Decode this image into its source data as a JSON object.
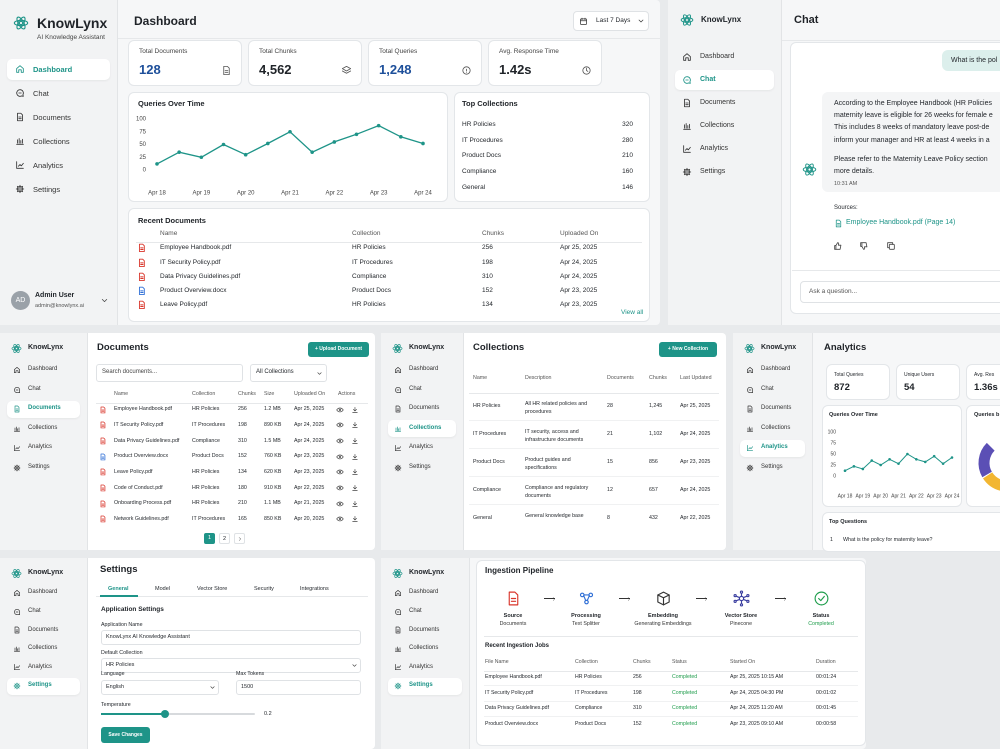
{
  "chart_data": [
    {
      "type": "line",
      "title": "Queries Over Time",
      "categories": [
        "Apr 18",
        null,
        "Apr 19",
        null,
        "Apr 20",
        null,
        "Apr 21",
        null,
        "Apr 22",
        null,
        "Apr 23",
        null,
        "Apr 24"
      ],
      "values": [
        12,
        35,
        25,
        50,
        30,
        52,
        75,
        35,
        55,
        70,
        87,
        65,
        52
      ],
      "ylim": [
        0,
        100
      ],
      "yticks": [
        0,
        25,
        50,
        75,
        100
      ],
      "color": "#1e9488"
    },
    {
      "type": "line",
      "title": "Queries Over Time",
      "categories": [
        "Apr 18",
        null,
        "Apr 19",
        null,
        "Apr 20",
        null,
        "Apr 21",
        null,
        "Apr 22",
        null,
        "Apr 23",
        null,
        "Apr 24"
      ],
      "values": [
        12,
        22,
        16,
        35,
        25,
        38,
        28,
        50,
        38,
        32,
        45,
        28,
        42
      ],
      "ylim": [
        0,
        100
      ],
      "yticks": [
        0,
        25,
        50,
        75,
        100
      ],
      "color": "#1e9488"
    }
  ],
  "app": {
    "brand": "KnowLynx",
    "tagline": "AI Knowledge Assistant",
    "nav": [
      "Dashboard",
      "Chat",
      "Documents",
      "Collections",
      "Analytics",
      "Settings"
    ],
    "user": {
      "initials": "AD",
      "name": "Admin User",
      "email": "admin@knowlynx.ai"
    }
  },
  "dashboard": {
    "title": "Dashboard",
    "range": "Last 7 Days",
    "stats": [
      {
        "label": "Total Documents",
        "value": "128"
      },
      {
        "label": "Total Chunks",
        "value": "4,562"
      },
      {
        "label": "Total Queries",
        "value": "1,248"
      },
      {
        "label": "Avg. Response Time",
        "value": "1.42s"
      }
    ],
    "top_collections": {
      "title": "Top Collections",
      "rows": [
        [
          "HR Policies",
          "320"
        ],
        [
          "IT Procedures",
          "280"
        ],
        [
          "Product Docs",
          "210"
        ],
        [
          "Compliance",
          "160"
        ],
        [
          "General",
          "146"
        ]
      ]
    },
    "recent": {
      "title": "Recent Documents",
      "headers": [
        "Name",
        "Collection",
        "Chunks",
        "Uploaded On"
      ],
      "rows": [
        [
          "Employee Handbook.pdf",
          "HR Policies",
          "256",
          "Apr 25, 2025"
        ],
        [
          "IT Security Policy.pdf",
          "IT Procedures",
          "198",
          "Apr 24, 2025"
        ],
        [
          "Data Privacy Guidelines.pdf",
          "Compliance",
          "310",
          "Apr 24, 2025"
        ],
        [
          "Product Overview.docx",
          "Product Docs",
          "152",
          "Apr 23, 2025"
        ],
        [
          "Leave Policy.pdf",
          "HR Policies",
          "134",
          "Apr 23, 2025"
        ]
      ],
      "link": "View all"
    }
  },
  "chat": {
    "title": "Chat",
    "question": "What is the pol",
    "answer": [
      "According to the Employee Handbook (HR Policies",
      "maternity leave is eligible for 26 weeks for female e",
      "This includes 8 weeks of mandatory leave post-de",
      "inform your manager and HR at least 4 weeks in a"
    ],
    "answer2": [
      "Please refer to the Maternity Leave Policy section",
      "more details."
    ],
    "time": "10:31 AM",
    "sources_label": "Sources:",
    "source": "Employee Handbook.pdf (Page 14)",
    "placeholder": "Ask a question..."
  },
  "documents": {
    "title": "Documents",
    "button": "+ Upload Document",
    "search": "Search documents...",
    "filter": "All Collections",
    "headers": [
      "Name",
      "Collection",
      "Chunks",
      "Size",
      "Uploaded On",
      "Actions"
    ],
    "rows": [
      [
        "Employee Handbook.pdf",
        "HR Policies",
        "256",
        "1.2 MB",
        "Apr 25, 2025"
      ],
      [
        "IT Security Policy.pdf",
        "IT Procedures",
        "198",
        "890 KB",
        "Apr 24, 2025"
      ],
      [
        "Data Privacy Guidelines.pdf",
        "Compliance",
        "310",
        "1.5 MB",
        "Apr 24, 2025"
      ],
      [
        "Product Overview.docx",
        "Product Docs",
        "152",
        "760 KB",
        "Apr 23, 2025"
      ],
      [
        "Leave Policy.pdf",
        "HR Policies",
        "134",
        "620 KB",
        "Apr 23, 2025"
      ],
      [
        "Code of Conduct.pdf",
        "HR Policies",
        "180",
        "910 KB",
        "Apr 22, 2025"
      ],
      [
        "Onboarding Process.pdf",
        "HR Policies",
        "210",
        "1.1 MB",
        "Apr 21, 2025"
      ],
      [
        "Network Guidelines.pdf",
        "IT Procedures",
        "165",
        "850 KB",
        "Apr 20, 2025"
      ]
    ],
    "pages": [
      "1",
      "2"
    ]
  },
  "collections": {
    "title": "Collections",
    "button": "+ New Collection",
    "headers": [
      "Name",
      "Description",
      "Documents",
      "Chunks",
      "Last Updated"
    ],
    "rows": [
      [
        "HR Policies",
        "All HR related policies and procedures",
        "28",
        "1,245",
        "Apr 25, 2025"
      ],
      [
        "IT Procedures",
        "IT security, access and infrastructure documents",
        "21",
        "1,102",
        "Apr 24, 2025"
      ],
      [
        "Product Docs",
        "Product guides and specifications",
        "15",
        "856",
        "Apr 23, 2025"
      ],
      [
        "Compliance",
        "Compliance and regulatory documents",
        "12",
        "657",
        "Apr 24, 2025"
      ],
      [
        "General",
        "General knowledge base",
        "8",
        "432",
        "Apr 22, 2025"
      ]
    ]
  },
  "analytics": {
    "title": "Analytics",
    "stats": [
      {
        "label": "Total Queries",
        "value": "872"
      },
      {
        "label": "Unique Users",
        "value": "54"
      },
      {
        "label": "Avg. Res",
        "value": "1.36s"
      }
    ],
    "side_card": "Queries b",
    "top_title": "Top Questions",
    "top": [
      [
        "1",
        "What is the policy for maternity leave?"
      ]
    ]
  },
  "settings": {
    "title": "Settings",
    "tabs": [
      "General",
      "Model",
      "Vector Store",
      "Security",
      "Integrations"
    ],
    "section": "Application Settings",
    "app_name_label": "Application Name",
    "app_name": "KnowLynx AI Knowledge Assistant",
    "collection_label": "Default Collection",
    "collection": "HR Policies",
    "language_label": "Language",
    "language": "English",
    "tokens_label": "Max Tokens",
    "tokens": "1500",
    "temperature_label": "Temperature",
    "temperature": "0.2",
    "save": "Save Changes"
  },
  "ingestion": {
    "title": "Ingestion Pipeline",
    "steps": [
      {
        "name": "Source",
        "sub": "Documents"
      },
      {
        "name": "Processing",
        "sub": "Text Splitter"
      },
      {
        "name": "Embedding",
        "sub": "Generating Embeddings"
      },
      {
        "name": "Vector Store",
        "sub": "Pinecone"
      },
      {
        "name": "Status",
        "sub": "Completed"
      }
    ],
    "jobs_title": "Recent Ingestion Jobs",
    "headers": [
      "File Name",
      "Collection",
      "Chunks",
      "Status",
      "Started On",
      "Duration"
    ],
    "rows": [
      [
        "Employee Handbook.pdf",
        "HR Policies",
        "256",
        "Completed",
        "Apr 25, 2025 10:15 AM",
        "00:01:24"
      ],
      [
        "IT Security Policy.pdf",
        "IT Procedures",
        "198",
        "Completed",
        "Apr 24, 2025 04:30 PM",
        "00:01:02"
      ],
      [
        "Data Privacy Guidelines.pdf",
        "Compliance",
        "310",
        "Completed",
        "Apr 24, 2025 11:20 AM",
        "00:01:45"
      ],
      [
        "Product Overview.docx",
        "Product Docs",
        "152",
        "Completed",
        "Apr 23, 2025 09:10 AM",
        "00:00:58"
      ]
    ]
  }
}
